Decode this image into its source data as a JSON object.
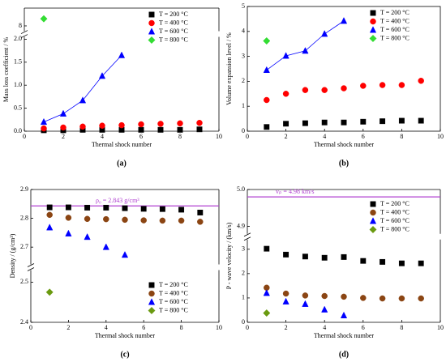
{
  "chart_data": [
    {
      "type": "scatter",
      "panel_label": "(a)",
      "xlabel": "Thermal shock number",
      "ylabel": "Mass loss coefficient / %",
      "xlim": [
        0,
        10
      ],
      "xticks": [
        0,
        2,
        4,
        6,
        8,
        10
      ],
      "ylim": [
        0,
        9
      ],
      "ybreak": [
        2.05,
        7.7
      ],
      "yticks": [
        {
          "value": 0,
          "label": "0.0"
        },
        0.5,
        {
          "value": 1,
          "label": "1.0"
        },
        1.5,
        {
          "value": 2,
          "label": "2.0"
        },
        8
      ],
      "legend": "upper right",
      "series": [
        {
          "name": "T = 200 °C",
          "color": "#000000",
          "marker": "square",
          "line": false,
          "x": [
            1,
            2,
            3,
            4,
            5,
            6,
            7,
            8,
            9
          ],
          "values": [
            0.02,
            0.02,
            0.03,
            0.03,
            0.03,
            0.03,
            0.03,
            0.03,
            0.04
          ]
        },
        {
          "name": "T = 400 °C",
          "color": "#ff0000",
          "marker": "circle",
          "line": false,
          "x": [
            1,
            2,
            3,
            4,
            5,
            6,
            7,
            8,
            9
          ],
          "values": [
            0.06,
            0.08,
            0.1,
            0.12,
            0.13,
            0.15,
            0.16,
            0.17,
            0.18
          ]
        },
        {
          "name": "T = 600 °C",
          "color": "#0000ff",
          "marker": "triangle",
          "line": true,
          "x": [
            1,
            2,
            3,
            4,
            5
          ],
          "values": [
            0.2,
            0.38,
            0.67,
            1.2,
            1.65
          ]
        },
        {
          "name": "T = 800 °C",
          "color": "#33dd33",
          "marker": "diamond",
          "line": false,
          "x": [
            1
          ],
          "values": [
            8.4
          ]
        }
      ]
    },
    {
      "type": "scatter",
      "panel_label": "(b)",
      "xlabel": "Thermal shock number",
      "ylabel": "Volume expansion level / %",
      "xlim": [
        0,
        10
      ],
      "xticks": [
        0,
        2,
        4,
        6,
        8,
        10
      ],
      "ylim": [
        0,
        5
      ],
      "yticks": [
        0,
        1,
        2,
        3,
        4,
        5
      ],
      "legend": "upper right",
      "series": [
        {
          "name": "T = 200 °C",
          "color": "#000000",
          "marker": "square",
          "line": false,
          "x": [
            1,
            2,
            3,
            4,
            5,
            6,
            7,
            8,
            9
          ],
          "values": [
            0.17,
            0.3,
            0.32,
            0.35,
            0.35,
            0.38,
            0.4,
            0.42,
            0.42
          ]
        },
        {
          "name": "T = 400 °C",
          "color": "#ff0000",
          "marker": "circle",
          "line": false,
          "x": [
            1,
            2,
            3,
            4,
            5,
            6,
            7,
            8,
            9
          ],
          "values": [
            1.25,
            1.5,
            1.65,
            1.65,
            1.72,
            1.82,
            1.85,
            1.85,
            2.02
          ]
        },
        {
          "name": "T = 600 °C",
          "color": "#0000ff",
          "marker": "triangle",
          "line": true,
          "x": [
            1,
            2,
            3,
            4,
            5
          ],
          "values": [
            2.45,
            3.02,
            3.22,
            3.9,
            4.42
          ]
        },
        {
          "name": "T = 800 °C",
          "color": "#33dd33",
          "marker": "diamond",
          "line": false,
          "x": [
            1
          ],
          "values": [
            3.62
          ]
        }
      ]
    },
    {
      "type": "scatter",
      "panel_label": "(c)",
      "xlabel": "Thermal shock number",
      "ylabel": "Density / (g/cm³)",
      "xlim": [
        0,
        10
      ],
      "xticks": [
        0,
        2,
        4,
        6,
        8,
        10
      ],
      "ylim": [
        2.4,
        2.9
      ],
      "ybreak": [
        2.53,
        2.64
      ],
      "yticks": [
        2.4,
        2.5,
        2.7,
        2.8,
        2.9
      ],
      "legend": "lower right",
      "reference_line": {
        "value": 2.843,
        "label": "ρ₀ = 2.843 g/cm³",
        "color": "#b040d0"
      },
      "series": [
        {
          "name": "T = 200 °C",
          "color": "#000000",
          "marker": "square",
          "line": false,
          "x": [
            1,
            2,
            3,
            4,
            5,
            6,
            7,
            8,
            9
          ],
          "values": [
            2.838,
            2.838,
            2.837,
            2.837,
            2.835,
            2.833,
            2.832,
            2.83,
            2.82
          ]
        },
        {
          "name": "T = 400 °C",
          "color": "#8b4513",
          "marker": "circle",
          "line": false,
          "x": [
            1,
            2,
            3,
            4,
            5,
            6,
            7,
            8,
            9
          ],
          "values": [
            2.812,
            2.802,
            2.798,
            2.797,
            2.795,
            2.793,
            2.792,
            2.792,
            2.788
          ]
        },
        {
          "name": "T = 600 °C",
          "color": "#0000ff",
          "marker": "triangle",
          "line": false,
          "x": [
            1,
            2,
            3,
            4,
            5
          ],
          "values": [
            2.768,
            2.747,
            2.735,
            2.7,
            2.673
          ]
        },
        {
          "name": "T = 800 °C",
          "color": "#6a9a10",
          "marker": "diamond",
          "line": false,
          "x": [
            1
          ],
          "values": [
            2.475
          ]
        }
      ]
    },
    {
      "type": "scatter",
      "panel_label": "(d)",
      "xlabel": "Thermal shock number",
      "ylabel": "P - wave velocity / (km/s)",
      "xlim": [
        0,
        10
      ],
      "xticks": [
        0,
        2,
        4,
        6,
        8,
        10
      ],
      "ylim": [
        0,
        5.0
      ],
      "ybreak": [
        3.4,
        4.88
      ],
      "yticks": [
        0,
        1,
        2,
        3,
        4.9,
        {
          "value": 5,
          "label": "5.0"
        }
      ],
      "legend": "upper right",
      "reference_line": {
        "value": 4.98,
        "label": "vₚ = 4.98 km/s",
        "color": "#b040d0"
      },
      "series": [
        {
          "name": "T = 200 °C",
          "color": "#000000",
          "marker": "square",
          "line": false,
          "x": [
            1,
            2,
            3,
            4,
            5,
            6,
            7,
            8,
            9
          ],
          "values": [
            3.02,
            2.78,
            2.7,
            2.65,
            2.68,
            2.52,
            2.48,
            2.42,
            2.42
          ]
        },
        {
          "name": "T = 400 °C",
          "color": "#8b4513",
          "marker": "circle",
          "line": false,
          "x": [
            1,
            2,
            3,
            4,
            5,
            6,
            7,
            8,
            9
          ],
          "values": [
            1.42,
            1.18,
            1.1,
            1.08,
            1.05,
            1.0,
            0.98,
            0.98,
            0.98
          ]
        },
        {
          "name": "T = 600 °C",
          "color": "#0000ff",
          "marker": "triangle",
          "line": false,
          "x": [
            1,
            2,
            3,
            4,
            5
          ],
          "values": [
            1.2,
            0.85,
            0.75,
            0.52,
            0.28
          ]
        },
        {
          "name": "T = 800 °C",
          "color": "#6a9a10",
          "marker": "diamond",
          "line": false,
          "x": [
            1
          ],
          "values": [
            0.38
          ]
        }
      ]
    }
  ]
}
